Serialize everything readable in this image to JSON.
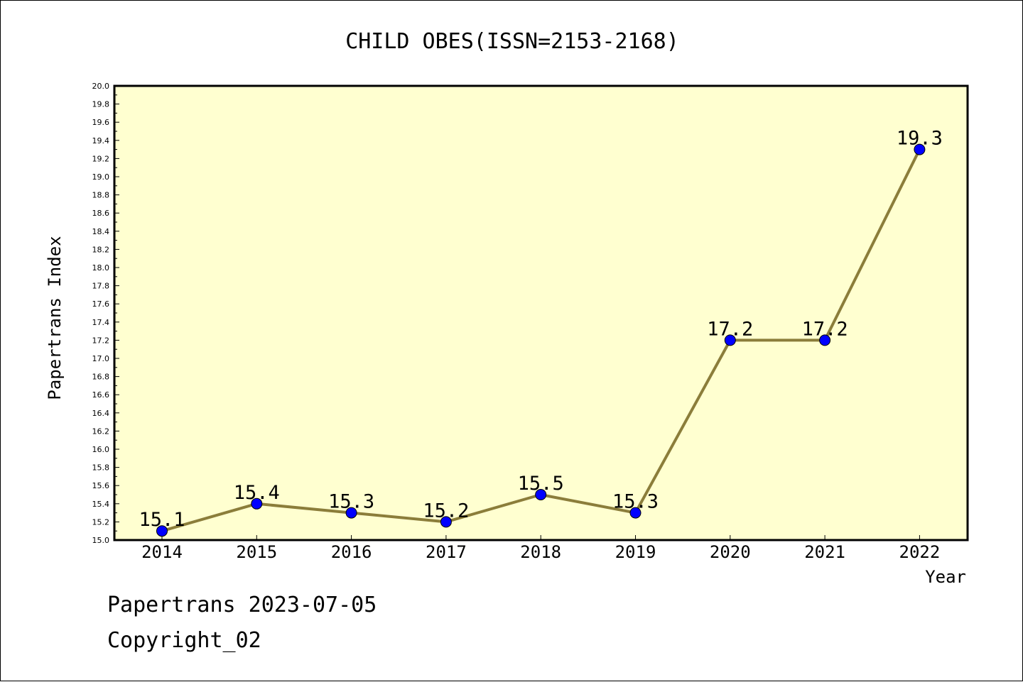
{
  "chart_data": {
    "type": "line",
    "title": "CHILD OBES(ISSN=2153-2168)",
    "xlabel": "Year",
    "ylabel": "Papertrans Index",
    "categories": [
      "2014",
      "2015",
      "2016",
      "2017",
      "2018",
      "2019",
      "2020",
      "2021",
      "2022"
    ],
    "values": [
      15.1,
      15.4,
      15.3,
      15.2,
      15.5,
      15.3,
      17.2,
      17.2,
      19.3
    ],
    "data_labels": [
      "15.1",
      "15.4",
      "15.3",
      "15.2",
      "15.5",
      "15.3",
      "17.2",
      "17.2",
      "19.3"
    ],
    "ylim": [
      15.0,
      20.0
    ],
    "yticks": [
      "15.0",
      "15.2",
      "15.4",
      "15.6",
      "15.8",
      "16.0",
      "16.2",
      "16.4",
      "16.6",
      "16.8",
      "17.0",
      "17.2",
      "17.4",
      "17.6",
      "17.8",
      "18.0",
      "18.2",
      "18.4",
      "18.6",
      "18.8",
      "19.0",
      "19.2",
      "19.4",
      "19.6",
      "19.8",
      "20.0"
    ],
    "grid": false,
    "colors": {
      "plot_bg": "#ffffd0",
      "line": "#8b7d3a",
      "marker": "#0000ff"
    }
  },
  "footer": {
    "line1": "Papertrans 2023-07-05",
    "line2": "Copyright_02"
  }
}
